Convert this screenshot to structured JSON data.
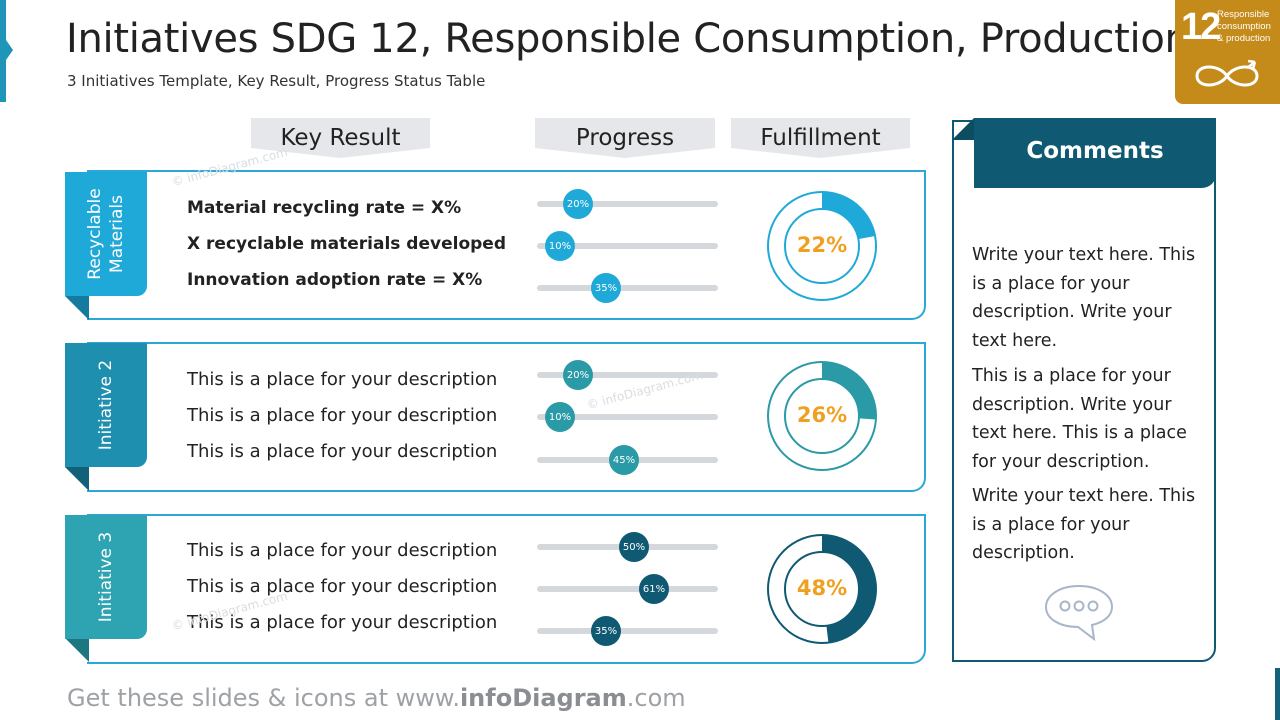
{
  "header": {
    "title": "Initiatives SDG 12, Responsible Consumption, Production",
    "subtitle": "3 Initiatives Template, Key Result, Progress Status Table"
  },
  "sdg_badge": {
    "number": "12",
    "line1": "Responsible",
    "line2": "consumption",
    "line3": "& production",
    "color": "#c48a1a",
    "icon": "infinity-arrow-icon"
  },
  "columns": {
    "key_result": "Key Result",
    "progress": "Progress",
    "fulfillment": "Fulfillment"
  },
  "initiatives": [
    {
      "label_line1": "Recyclable",
      "label_line2": "Materials",
      "color": "#1fa9d9",
      "items": [
        {
          "text": "Material recycling rate = X%",
          "progress": 20,
          "progress_label": "20%"
        },
        {
          "text": "X recyclable materials developed",
          "progress": 10,
          "progress_label": "10%"
        },
        {
          "text": "Innovation adoption rate = X%",
          "progress": 35,
          "progress_label": "35%"
        }
      ],
      "fulfillment": 22,
      "fulfillment_label": "22%"
    },
    {
      "label_line1": "Initiative 2",
      "label_line2": "",
      "color": "#1f8fb0",
      "items": [
        {
          "text": "This is a place for your description",
          "progress": 20,
          "progress_label": "20%"
        },
        {
          "text": "This is a place for your description",
          "progress": 10,
          "progress_label": "10%"
        },
        {
          "text": "This is a place for your description",
          "progress": 45,
          "progress_label": "45%"
        }
      ],
      "fulfillment": 26,
      "fulfillment_label": "26%"
    },
    {
      "label_line1": "Initiative 3",
      "label_line2": "",
      "color": "#2ea3b1",
      "items": [
        {
          "text": "This is a place for your description",
          "progress": 50,
          "progress_label": "50%"
        },
        {
          "text": "This is a place for your description",
          "progress": 61,
          "progress_label": "61%"
        },
        {
          "text": "This is a place for your description",
          "progress": 35,
          "progress_label": "35%"
        }
      ],
      "fulfillment": 48,
      "fulfillment_label": "48%"
    }
  ],
  "comments": {
    "heading": "Comments",
    "paragraphs": [
      "Write your text here. This is a place for your description. Write your text here.",
      "This is a place for your description. Write your text here. This is a place for your description.",
      "Write your text here. This is a place for your description."
    ],
    "icon": "speech-bubble-icon"
  },
  "footer": {
    "prefix": "Get these slides & icons at www.",
    "brand": "infoDiagram",
    "suffix": ".com"
  },
  "watermark": "© infoDiagram.com",
  "colors": {
    "panel_border": "#2aa9d8",
    "dark_teal": "#0f5a72",
    "percent_text": "#f0a020",
    "track": "#d4d7db"
  }
}
